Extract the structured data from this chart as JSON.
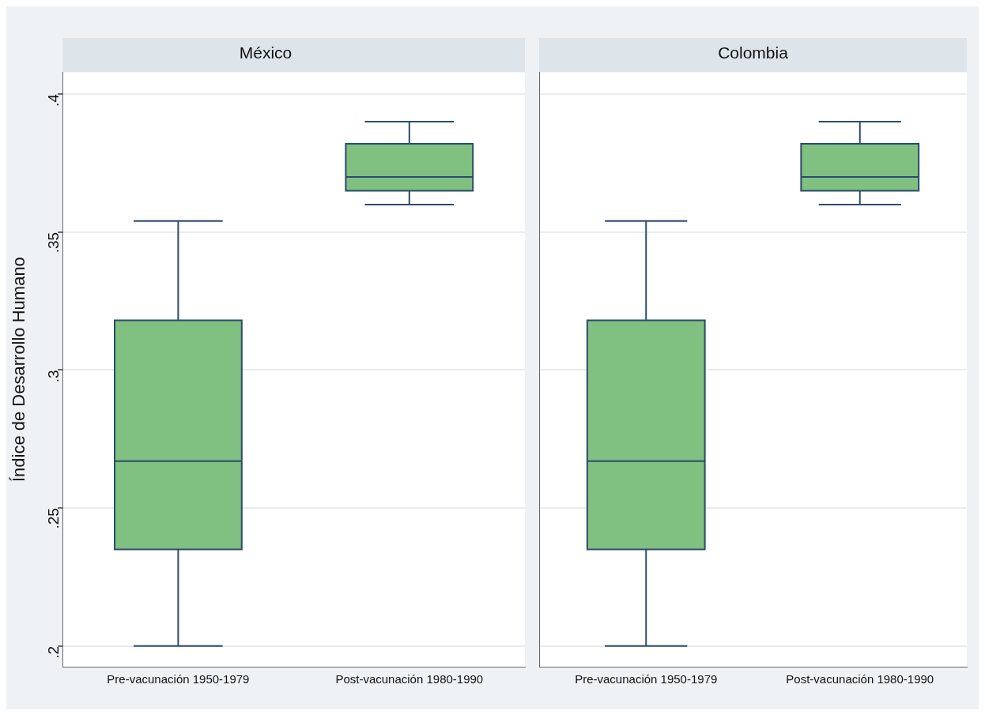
{
  "chart_data": [
    {
      "type": "box",
      "title": "México",
      "ylabel": "Índice de Desarrollo Humano",
      "categories": [
        "Pre-vacunación 1950-1979",
        "Post-vacunación 1980-1990"
      ],
      "color": "#80c080",
      "boxes": [
        {
          "low": 0.2,
          "q1": 0.235,
          "median": 0.267,
          "q3": 0.318,
          "high": 0.354
        },
        {
          "low": 0.36,
          "q1": 0.365,
          "median": 0.37,
          "q3": 0.382,
          "high": 0.39
        }
      ],
      "ylim": [
        0.1925,
        0.408
      ],
      "yticks": [
        {
          "value": 0.2,
          "label": ".2"
        },
        {
          "value": 0.25,
          "label": ".25"
        },
        {
          "value": 0.3,
          "label": ".3"
        },
        {
          "value": 0.35,
          "label": ".35"
        },
        {
          "value": 0.4,
          "label": ".4"
        }
      ],
      "grid": "y",
      "legend": false
    },
    {
      "type": "box",
      "title": "Colombia",
      "categories": [
        "Pre-vacunación 1950-1979",
        "Post-vacunación 1980-1990"
      ],
      "color": "#80c080",
      "boxes": [
        {
          "low": 0.2,
          "q1": 0.235,
          "median": 0.267,
          "q3": 0.318,
          "high": 0.354
        },
        {
          "low": 0.36,
          "q1": 0.365,
          "median": 0.37,
          "q3": 0.382,
          "high": 0.39
        }
      ],
      "ylim": [
        0.1925,
        0.408
      ],
      "yticks": [
        {
          "value": 0.2,
          "label": null
        },
        {
          "value": 0.25,
          "label": null
        },
        {
          "value": 0.3,
          "label": null
        },
        {
          "value": 0.35,
          "label": null
        },
        {
          "value": 0.4,
          "label": null
        }
      ],
      "grid": "y",
      "tick_labels": "x",
      "legend": false
    }
  ]
}
